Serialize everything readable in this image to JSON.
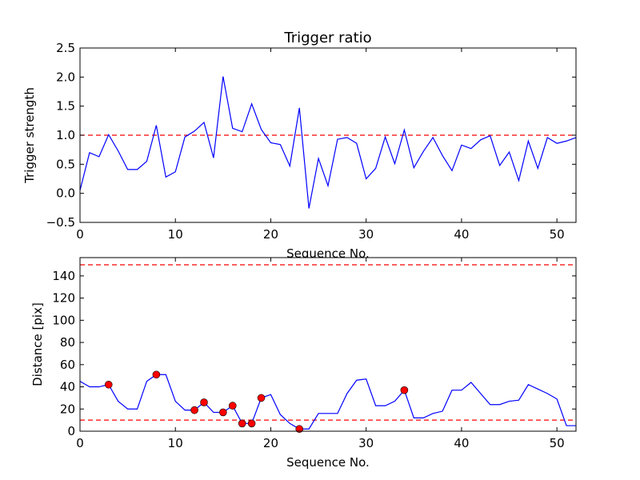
{
  "chart_data": [
    {
      "type": "line",
      "title": "Trigger ratio",
      "xlabel": "Sequence No.",
      "ylabel": "Trigger strength",
      "xlim": [
        0,
        52
      ],
      "ylim": [
        -0.5,
        2.5
      ],
      "xticks": [
        0,
        10,
        20,
        30,
        40,
        50
      ],
      "yticks": [
        -0.5,
        0.0,
        0.5,
        1.0,
        1.5,
        2.0,
        2.5
      ],
      "ytick_labels": [
        "−0.5",
        "0.0",
        "0.5",
        "1.0",
        "1.5",
        "2.0",
        "2.5"
      ],
      "series": [
        {
          "name": "trigger",
          "color": "#0000ff",
          "values": [
            0.05,
            0.7,
            0.63,
            1.01,
            0.73,
            0.41,
            0.41,
            0.55,
            1.17,
            0.28,
            0.37,
            0.97,
            1.07,
            1.22,
            0.61,
            2.01,
            1.12,
            1.06,
            1.54,
            1.1,
            0.87,
            0.84,
            0.47,
            1.47,
            -0.26,
            0.6,
            0.13,
            0.93,
            0.96,
            0.86,
            0.25,
            0.43,
            0.97,
            0.51,
            1.09,
            0.44,
            0.72,
            0.96,
            0.65,
            0.39,
            0.83,
            0.77,
            0.92,
            0.99,
            0.48,
            0.71,
            0.22,
            0.9,
            0.43,
            0.96,
            0.86,
            0.9,
            0.96
          ]
        }
      ],
      "hlines": [
        {
          "y": 1.0,
          "color": "#ff0000",
          "style": "dashed"
        }
      ]
    },
    {
      "type": "line",
      "title": "",
      "xlabel": "Sequence No.",
      "ylabel": "Distance [pix]",
      "xlim": [
        0,
        52
      ],
      "ylim": [
        0,
        156.5
      ],
      "xticks": [
        0,
        10,
        20,
        30,
        40,
        50
      ],
      "yticks": [
        0,
        20,
        40,
        60,
        80,
        100,
        120,
        140
      ],
      "ytick_labels": [
        "0",
        "20",
        "40",
        "60",
        "80",
        "100",
        "120",
        "140"
      ],
      "series": [
        {
          "name": "distance",
          "color": "#0000ff",
          "values": [
            45,
            40,
            40,
            42,
            27,
            20,
            20,
            45,
            51,
            51,
            27,
            19,
            19,
            26,
            17,
            17,
            23,
            7,
            7,
            30,
            33,
            15,
            7,
            2,
            2,
            16,
            16,
            16,
            34,
            46,
            47,
            23,
            23,
            27,
            37,
            12,
            12,
            16,
            18,
            37,
            37,
            44,
            34,
            24,
            24,
            27,
            28,
            42,
            38,
            34,
            29,
            5,
            5
          ]
        }
      ],
      "markers": {
        "color": "#ff0000",
        "indices": [
          3,
          8,
          12,
          13,
          15,
          16,
          17,
          18,
          19,
          23,
          34
        ]
      },
      "hlines": [
        {
          "y": 150,
          "color": "#ff0000",
          "style": "dashed"
        },
        {
          "y": 10,
          "color": "#ff0000",
          "style": "dashed"
        }
      ]
    }
  ]
}
